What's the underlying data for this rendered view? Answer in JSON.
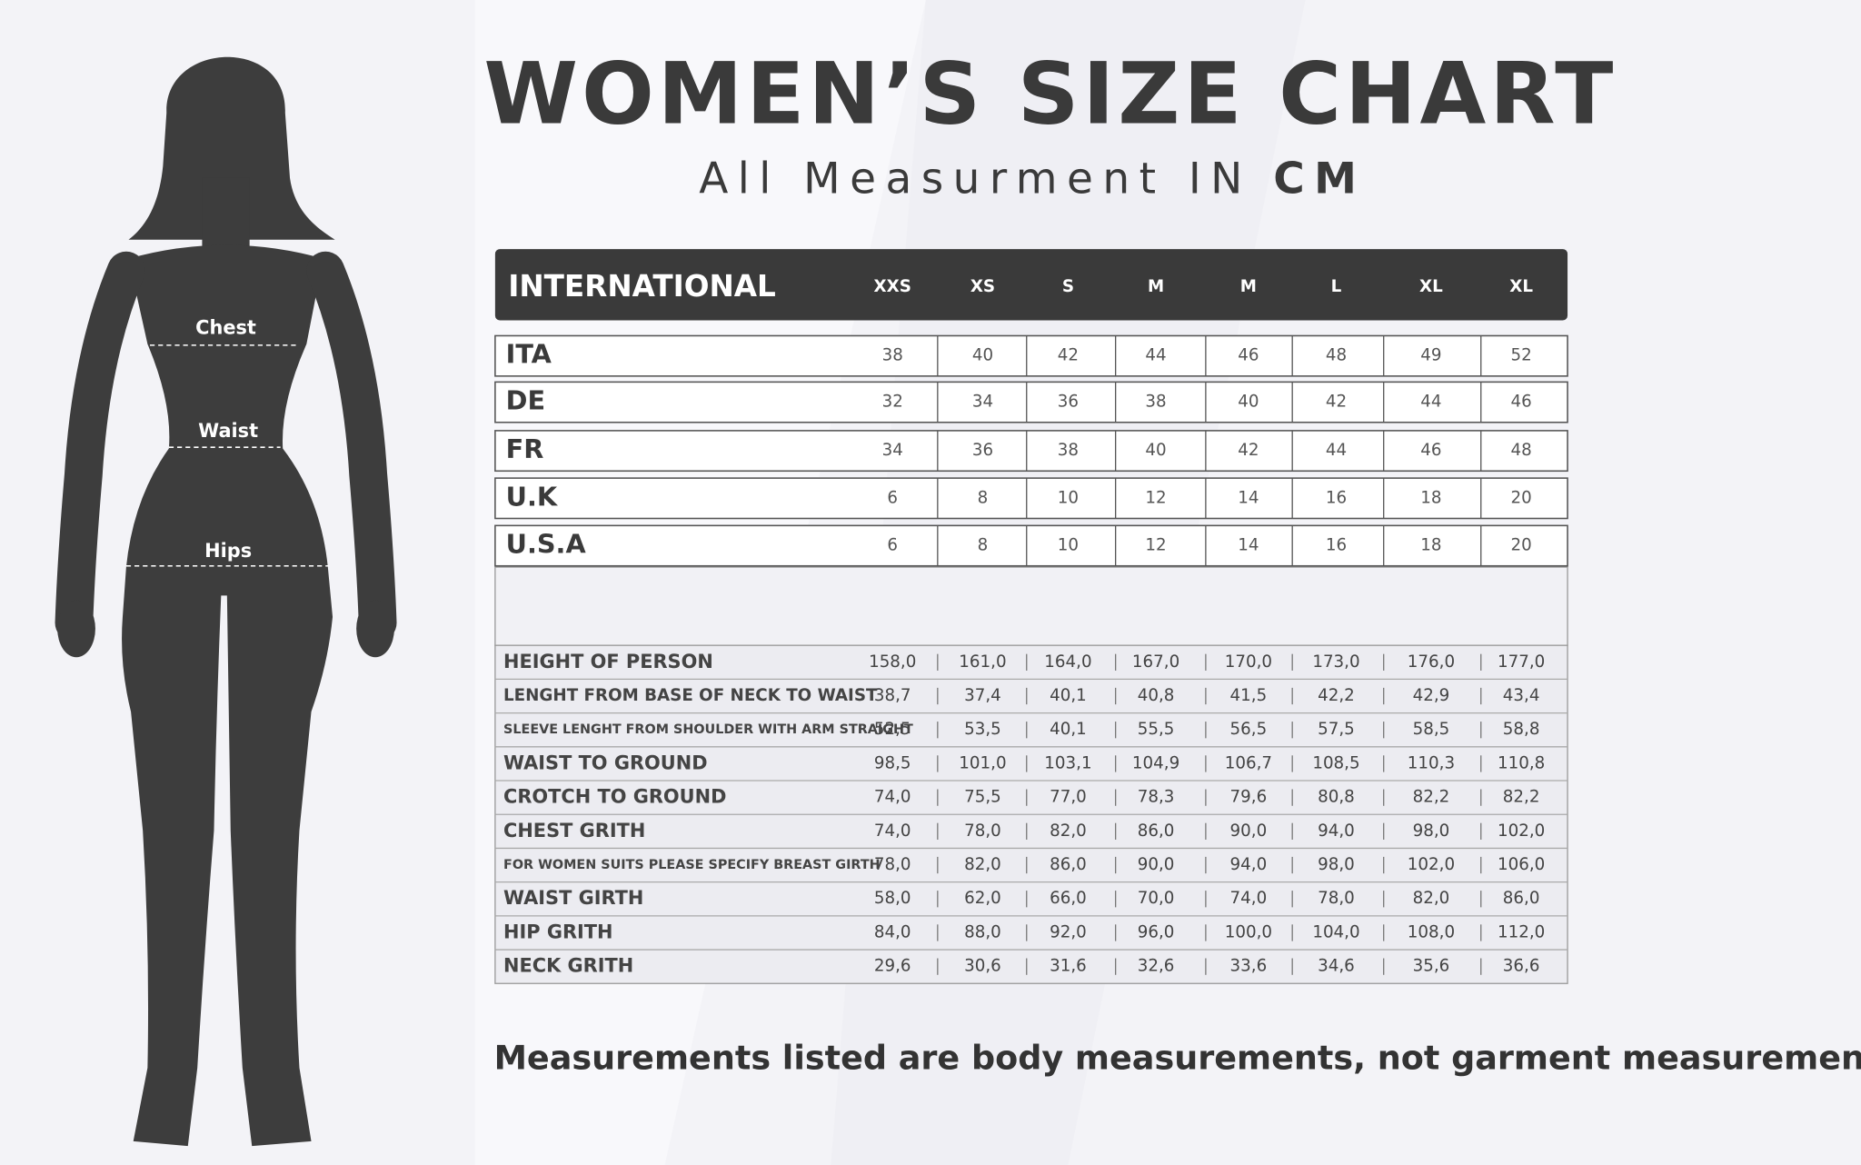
{
  "title": "WOMEN’S SIZE CHART",
  "subtitle": {
    "text": "All Measurment IN",
    "unit": "CM"
  },
  "figure_labels": [
    "Chest",
    "Waist",
    "Hips"
  ],
  "size_table": {
    "header": {
      "label": "INTERNATIONAL",
      "sizes": [
        "XXS",
        "XS",
        "S",
        "M",
        "M",
        "L",
        "XL",
        "XL"
      ]
    },
    "rows": [
      {
        "label": "ITA",
        "values": [
          38,
          40,
          42,
          44,
          46,
          48,
          49,
          52
        ]
      },
      {
        "label": "DE",
        "values": [
          32,
          34,
          36,
          38,
          40,
          42,
          44,
          46
        ]
      },
      {
        "label": "FR",
        "values": [
          34,
          36,
          38,
          40,
          42,
          44,
          46,
          48
        ]
      },
      {
        "label": "U.K",
        "values": [
          6,
          8,
          10,
          12,
          14,
          16,
          18,
          20
        ]
      },
      {
        "label": "U.S.A",
        "values": [
          6,
          8,
          10,
          12,
          14,
          16,
          18,
          20
        ]
      }
    ]
  },
  "measurements_table": {
    "rows": [
      {
        "label": "HEIGHT OF PERSON",
        "values": [
          "158,0",
          "161,0",
          "164,0",
          "167,0",
          "170,0",
          "173,0",
          "176,0",
          "177,0"
        ]
      },
      {
        "label": "LENGHT FROM BASE OF NECK TO WAIST",
        "values": [
          "38,7",
          "37,4",
          "40,1",
          "40,8",
          "41,5",
          "42,2",
          "42,9",
          "43,4"
        ]
      },
      {
        "label": "SLEEVE LENGHT FROM SHOULDER WITH ARM STRAIGHT",
        "values": [
          "52,5",
          "53,5",
          "40,1",
          "55,5",
          "56,5",
          "57,5",
          "58,5",
          "58,8"
        ]
      },
      {
        "label": "WAIST TO GROUND",
        "values": [
          "98,5",
          "101,0",
          "103,1",
          "104,9",
          "106,7",
          "108,5",
          "110,3",
          "110,8"
        ]
      },
      {
        "label": "CROTCH TO GROUND",
        "values": [
          "74,0",
          "75,5",
          "77,0",
          "78,3",
          "79,6",
          "80,8",
          "82,2",
          "82,2"
        ]
      },
      {
        "label": "CHEST GRITH",
        "values": [
          "74,0",
          "78,0",
          "82,0",
          "86,0",
          "90,0",
          "94,0",
          "98,0",
          "102,0"
        ]
      },
      {
        "label": "FOR WOMEN SUITS PLEASE SPECIFY BREAST GIRTH",
        "values": [
          "78,0",
          "82,0",
          "86,0",
          "90,0",
          "94,0",
          "98,0",
          "102,0",
          "106,0"
        ]
      },
      {
        "label": "WAIST GIRTH",
        "values": [
          "58,0",
          "62,0",
          "66,0",
          "70,0",
          "74,0",
          "78,0",
          "82,0",
          "86,0"
        ]
      },
      {
        "label": "HIP GRITH",
        "values": [
          "84,0",
          "88,0",
          "92,0",
          "96,0",
          "100,0",
          "104,0",
          "108,0",
          "112,0"
        ]
      },
      {
        "label": "NECK GRITH",
        "values": [
          "29,6",
          "30,6",
          "31,6",
          "32,6",
          "33,6",
          "34,6",
          "35,6",
          "36,6"
        ]
      }
    ]
  },
  "note": "Measurements listed are body measurements, not garment measurements"
}
